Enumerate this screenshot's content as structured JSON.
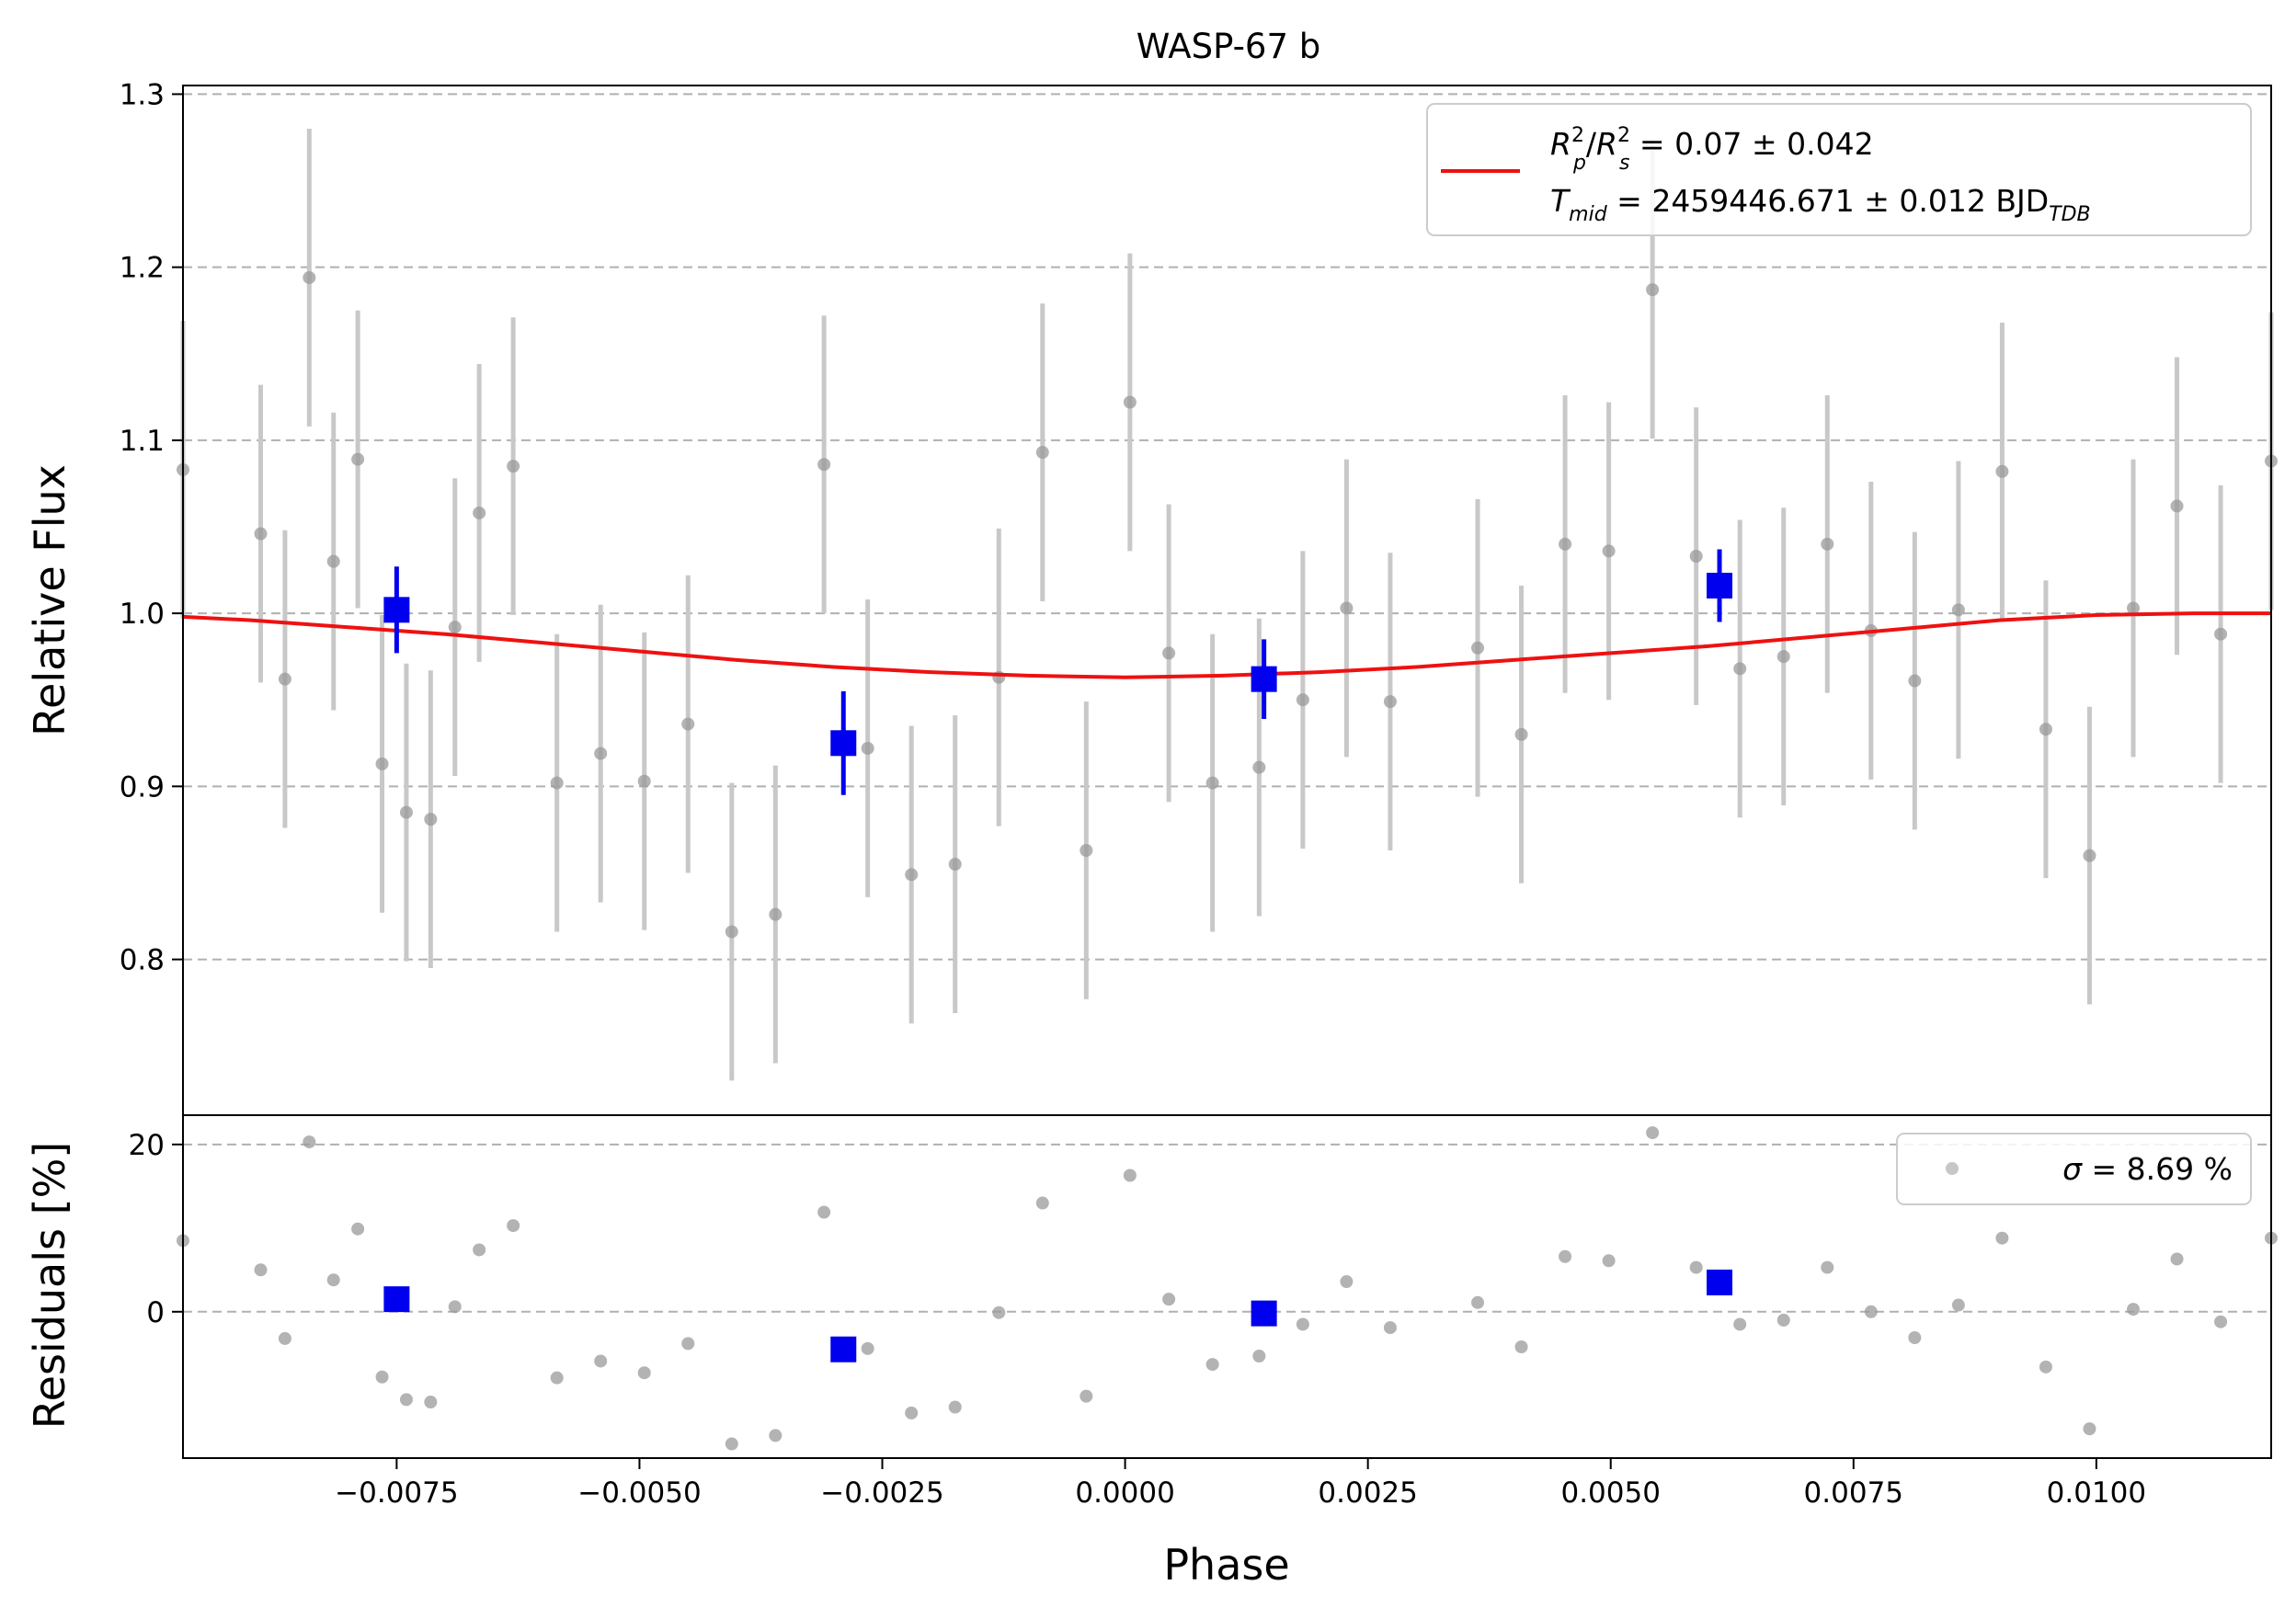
{
  "colors": {
    "model": "#ee1111",
    "binned": "#0000ee",
    "raw": "#999999",
    "errorbar": "#c8c8c8",
    "grid": "#b0b0b0",
    "axes": "#000000"
  },
  "chart_data": [
    {
      "type": "scatter",
      "panel": "flux",
      "title": "WASP-67 b",
      "xlabel": "",
      "ylabel": "Relative Flux",
      "xlim": [
        -0.0097,
        0.0118
      ],
      "ylim": [
        0.71,
        1.305
      ],
      "yticks": [
        0.8,
        0.9,
        1.0,
        1.1,
        1.2,
        1.3
      ],
      "ytick_labels": [
        "0.8",
        "0.9",
        "1.0",
        "1.1",
        "1.2",
        "1.3"
      ],
      "grid": "horizontal dashed",
      "legend": {
        "placement": "top-right",
        "label_line1": "R_p^2/R_s^2 = 0.07 ± 0.042",
        "label_line2": "T_mid = 2459446.671 ± 0.012 BJD_TDB",
        "line1_parts": {
          "r": "R",
          "p": "p",
          "sq": "2",
          "slash": "/",
          "s": "s",
          "rest": " = 0.07 ± 0.042"
        },
        "line2_parts": {
          "t": "T",
          "mid": "mid",
          "rest": " = 2459446.671 ± 0.012 BJD",
          "tdb": "TDB"
        }
      },
      "model_curve": {
        "x": [
          -0.0097,
          -0.009,
          -0.008,
          -0.007,
          -0.006,
          -0.005,
          -0.004,
          -0.003,
          -0.002,
          -0.001,
          0.0,
          0.001,
          0.002,
          0.003,
          0.004,
          0.005,
          0.006,
          0.007,
          0.008,
          0.009,
          0.01,
          0.011,
          0.0118
        ],
        "y": [
          0.998,
          0.996,
          0.992,
          0.988,
          0.983,
          0.978,
          0.973,
          0.969,
          0.966,
          0.964,
          0.963,
          0.964,
          0.966,
          0.969,
          0.973,
          0.977,
          0.981,
          0.986,
          0.991,
          0.996,
          0.999,
          1.0,
          1.0
        ]
      },
      "raw_points": {
        "x": [
          -0.0097,
          -0.0089,
          -0.00865,
          -0.0084,
          -0.00815,
          -0.0079,
          -0.00765,
          -0.0074,
          -0.00715,
          -0.0069,
          -0.00665,
          -0.0063,
          -0.00585,
          -0.0054,
          -0.00495,
          -0.0045,
          -0.00405,
          -0.0036,
          -0.0031,
          -0.00265,
          -0.0022,
          -0.00175,
          -0.0013,
          -0.00085,
          -0.0004,
          5e-05,
          0.00045,
          0.0009,
          0.00138,
          0.00183,
          0.00228,
          0.00273,
          0.00363,
          0.00408,
          0.00453,
          0.00498,
          0.00543,
          0.00588,
          0.00633,
          0.00678,
          0.00723,
          0.00768,
          0.00813,
          0.00858,
          0.00903,
          0.00948,
          0.00993,
          0.01038,
          0.01083,
          0.01128,
          0.0118
        ],
        "y": [
          1.083,
          1.046,
          0.962,
          1.194,
          1.03,
          1.089,
          0.913,
          0.885,
          0.881,
          0.992,
          1.058,
          1.085,
          0.902,
          0.919,
          0.903,
          0.936,
          0.816,
          0.826,
          1.086,
          0.922,
          0.849,
          0.855,
          0.963,
          1.093,
          0.863,
          1.122,
          0.977,
          0.902,
          0.911,
          0.95,
          1.003,
          0.949,
          0.98,
          0.93,
          1.04,
          1.036,
          1.187,
          1.033,
          0.968,
          0.975,
          1.04,
          0.99,
          0.961,
          1.002,
          1.082,
          0.933,
          0.86,
          1.003,
          1.062,
          0.988,
          1.088
        ],
        "yerr": 0.086
      },
      "binned_points": {
        "x": [
          -0.0075,
          -0.0029,
          0.00143,
          0.00612
        ],
        "y": [
          1.002,
          0.925,
          0.962,
          1.016
        ],
        "yerr": [
          0.025,
          0.03,
          0.023,
          0.021
        ]
      }
    },
    {
      "type": "scatter",
      "panel": "residuals",
      "xlabel": "Phase",
      "ylabel": "Residuals [%]",
      "xlim": [
        -0.0097,
        0.0118
      ],
      "ylim": [
        -17.5,
        23.5
      ],
      "xticks": [
        -0.0075,
        -0.005,
        -0.0025,
        0.0,
        0.0025,
        0.005,
        0.0075,
        0.01
      ],
      "xtick_labels": [
        "−0.0075",
        "−0.0050",
        "−0.0025",
        "0.0000",
        "0.0025",
        "0.0050",
        "0.0075",
        "0.0100"
      ],
      "yticks": [
        0,
        20
      ],
      "ytick_labels": [
        "0",
        "20"
      ],
      "grid": "horizontal dashed",
      "legend": {
        "placement": "top-right",
        "sigma": "σ",
        "rest": " = 8.69 %"
      },
      "raw_points": {
        "x": [
          -0.0097,
          -0.0089,
          -0.00865,
          -0.0084,
          -0.00815,
          -0.0079,
          -0.00765,
          -0.0074,
          -0.00715,
          -0.0069,
          -0.00665,
          -0.0063,
          -0.00585,
          -0.0054,
          -0.00495,
          -0.0045,
          -0.00405,
          -0.0036,
          -0.0031,
          -0.00265,
          -0.0022,
          -0.00175,
          -0.0013,
          -0.00085,
          -0.0004,
          5e-05,
          0.00045,
          0.0009,
          0.00138,
          0.00183,
          0.00228,
          0.00273,
          0.00363,
          0.00408,
          0.00453,
          0.00498,
          0.00543,
          0.00588,
          0.00633,
          0.00678,
          0.00723,
          0.00768,
          0.00813,
          0.00858,
          0.00903,
          0.00948,
          0.00993,
          0.01038,
          0.01083,
          0.01128,
          0.0118
        ],
        "y": [
          8.5,
          5.0,
          -3.2,
          20.3,
          3.8,
          9.9,
          -7.8,
          -10.5,
          -10.8,
          0.6,
          7.4,
          10.3,
          -7.9,
          -5.9,
          -7.3,
          -3.8,
          -15.8,
          -14.8,
          11.9,
          -4.4,
          -12.1,
          -11.4,
          -0.1,
          13.0,
          -10.1,
          16.3,
          1.5,
          -6.3,
          -5.3,
          -1.5,
          3.6,
          -1.9,
          1.1,
          -4.2,
          6.6,
          6.1,
          21.4,
          5.3,
          -1.5,
          -1.0,
          5.3,
          0.0,
          -3.1,
          0.8,
          8.8,
          -6.6,
          -14.0,
          0.3,
          6.3,
          -1.2,
          8.8
        ]
      },
      "binned_points": {
        "x": [
          -0.0075,
          -0.0029,
          0.00143,
          0.00612
        ],
        "y": [
          1.5,
          -4.5,
          -0.2,
          3.5
        ]
      }
    }
  ]
}
